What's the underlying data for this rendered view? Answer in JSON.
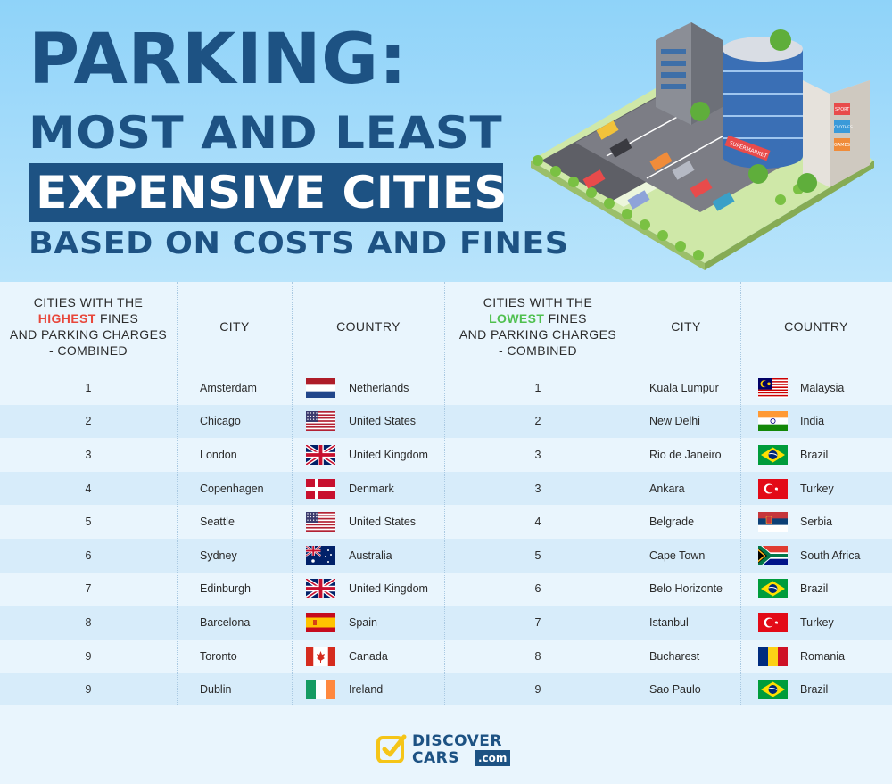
{
  "title": {
    "line1": "PARKING:",
    "line2": "MOST AND LEAST",
    "line3": "EXPENSIVE CITIES",
    "line4": "BASED ON COSTS AND FINES"
  },
  "illustration": {
    "sign_supermarket": "SUPERMARKET",
    "sign_sport": "SPORT",
    "sign_clothes": "CLOTHES",
    "sign_games": "GAMES"
  },
  "table": {
    "left_header": {
      "line1": "CITIES WITH THE",
      "highlight": "HIGHEST",
      "line2_rest": " FINES",
      "line3": "AND PARKING CHARGES",
      "line4": "- COMBINED"
    },
    "right_header": {
      "line1": "CITIES WITH THE",
      "highlight": "LOWEST",
      "line2_rest": " FINES",
      "line3": "AND PARKING CHARGES",
      "line4": "- COMBINED"
    },
    "city_header": "CITY",
    "country_header": "COUNTRY",
    "highest": [
      {
        "rank": "1",
        "city": "Amsterdam",
        "country": "Netherlands",
        "flag": "netherlands-flag"
      },
      {
        "rank": "2",
        "city": "Chicago",
        "country": "United States",
        "flag": "usa-flag"
      },
      {
        "rank": "3",
        "city": "London",
        "country": "United Kingdom",
        "flag": "uk-flag"
      },
      {
        "rank": "4",
        "city": "Copenhagen",
        "country": "Denmark",
        "flag": "denmark-flag"
      },
      {
        "rank": "5",
        "city": "Seattle",
        "country": "United States",
        "flag": "usa-flag"
      },
      {
        "rank": "6",
        "city": "Sydney",
        "country": "Australia",
        "flag": "australia-flag"
      },
      {
        "rank": "7",
        "city": "Edinburgh",
        "country": "United Kingdom",
        "flag": "uk-flag"
      },
      {
        "rank": "8",
        "city": "Barcelona",
        "country": "Spain",
        "flag": "spain-flag"
      },
      {
        "rank": "9",
        "city": "Toronto",
        "country": "Canada",
        "flag": "canada-flag"
      },
      {
        "rank": "9",
        "city": "Dublin",
        "country": "Ireland",
        "flag": "ireland-flag"
      }
    ],
    "lowest": [
      {
        "rank": "1",
        "city": "Kuala Lumpur",
        "country": "Malaysia",
        "flag": "malaysia-flag"
      },
      {
        "rank": "2",
        "city": "New Delhi",
        "country": "India",
        "flag": "india-flag"
      },
      {
        "rank": "3",
        "city": "Rio de Janeiro",
        "country": "Brazil",
        "flag": "brazil-flag"
      },
      {
        "rank": "3",
        "city": "Ankara",
        "country": "Turkey",
        "flag": "turkey-flag"
      },
      {
        "rank": "4",
        "city": "Belgrade",
        "country": "Serbia",
        "flag": "serbia-flag"
      },
      {
        "rank": "5",
        "city": "Cape Town",
        "country": "South Africa",
        "flag": "south-africa-flag"
      },
      {
        "rank": "6",
        "city": "Belo Horizonte",
        "country": "Brazil",
        "flag": "brazil-flag"
      },
      {
        "rank": "7",
        "city": "Istanbul",
        "country": "Turkey",
        "flag": "turkey-flag"
      },
      {
        "rank": "8",
        "city": "Bucharest",
        "country": "Romania",
        "flag": "romania-flag"
      },
      {
        "rank": "9",
        "city": "Sao Paulo",
        "country": "Brazil",
        "flag": "brazil-flag"
      }
    ]
  },
  "logo": {
    "word1": "DISCOVER",
    "word2": "CARS",
    "suffix": ".com",
    "icon": "checkbox-icon"
  },
  "colors": {
    "title_blue": "#1d5283",
    "highest_red": "#e8473b",
    "lowest_green": "#4fc04f",
    "logo_yellow": "#f5c518"
  }
}
